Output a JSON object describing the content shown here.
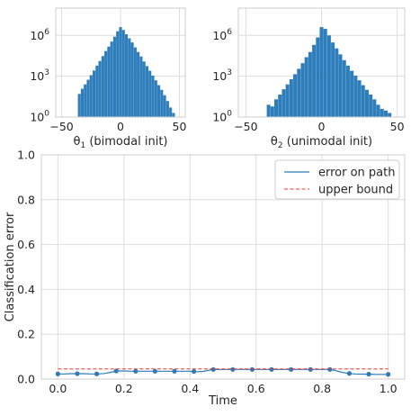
{
  "colors": {
    "bar": "#2f7ebc",
    "line": "#2e7bb8",
    "bound": "#e8352c",
    "grid": "#dddddd",
    "frame": "#cccccc"
  },
  "chart_data": [
    {
      "type": "bar",
      "panel": "top-left",
      "title": "",
      "xlabel": "θ1 (bimodal init)",
      "ylabel": "",
      "log_y": true,
      "grid": true,
      "xlim": [
        -55,
        55
      ],
      "ylim": [
        1,
        100000000
      ],
      "xticks": [
        -50,
        0,
        50
      ],
      "xtick_labels": [
        "−50",
        "0",
        "50"
      ],
      "yticks": [
        1,
        1000,
        1000000
      ],
      "ytick_labels": [
        "10^0",
        "10^3",
        "10^6"
      ],
      "bin_width": 2.4,
      "x": [
        -35,
        -32.5,
        -30,
        -27.5,
        -25,
        -22.5,
        -20,
        -17.5,
        -15,
        -12.5,
        -10,
        -7.5,
        -5,
        -2.5,
        0,
        2.5,
        5,
        7.5,
        10,
        12.5,
        15,
        17.5,
        20,
        22.5,
        25,
        27.5,
        30,
        32.5,
        35,
        37.5,
        40,
        42.5,
        45
      ],
      "values": [
        50,
        120,
        250,
        550,
        1200,
        2600,
        6000,
        13000,
        30000,
        70000,
        150000,
        350000,
        800000,
        2000000,
        4000000,
        2500000,
        1200000,
        600000,
        300000,
        130000,
        60000,
        28000,
        12000,
        5500,
        2500,
        1100,
        500,
        220,
        100,
        40,
        15,
        5,
        2
      ]
    },
    {
      "type": "bar",
      "panel": "top-right",
      "title": "",
      "xlabel": "θ2 (unimodal init)",
      "ylabel": "",
      "log_y": true,
      "grid": true,
      "xlim": [
        -55,
        55
      ],
      "ylim": [
        1,
        100000000
      ],
      "xticks": [
        -50,
        0,
        50
      ],
      "xtick_labels": [
        "−50",
        "0",
        "50"
      ],
      "yticks": [
        1,
        1000,
        1000000
      ],
      "ytick_labels": [
        "10^0",
        "10^3",
        "10^6"
      ],
      "bin_width": 2.4,
      "x": [
        -35,
        -32.5,
        -30,
        -27.5,
        -25,
        -22.5,
        -20,
        -17.5,
        -15,
        -12.5,
        -10,
        -7.5,
        -5,
        -2.5,
        0,
        2.5,
        5,
        7.5,
        10,
        12.5,
        15,
        17.5,
        20,
        22.5,
        25,
        27.5,
        30,
        32.5,
        35,
        37.5,
        40,
        42.5,
        45
      ],
      "values": [
        8,
        6,
        20,
        45,
        110,
        250,
        600,
        1400,
        3500,
        9000,
        25000,
        60000,
        200000,
        700000,
        4000000,
        3000000,
        1000000,
        300000,
        110000,
        40000,
        15000,
        6000,
        2500,
        1100,
        500,
        220,
        100,
        45,
        20,
        8,
        4,
        3,
        2
      ]
    },
    {
      "type": "line",
      "panel": "bottom",
      "title": "",
      "xlabel": "Time",
      "ylabel": "Classification error",
      "grid": true,
      "legend_position": "top-right",
      "xlim": [
        -0.05,
        1.05
      ],
      "ylim": [
        0,
        1.0
      ],
      "xticks": [
        0,
        0.2,
        0.4,
        0.6,
        0.8,
        1.0
      ],
      "xtick_labels": [
        "0.0",
        "0.2",
        "0.4",
        "0.6",
        "0.8",
        "1.0"
      ],
      "yticks": [
        0,
        0.2,
        0.4,
        0.6,
        0.8,
        1.0
      ],
      "ytick_labels": [
        "0.0",
        "0.2",
        "0.4",
        "0.6",
        "0.8",
        "1.0"
      ],
      "series": [
        {
          "name": "error on path",
          "style": "solid",
          "x": [
            0,
            0.02,
            0.04,
            0.06,
            0.08,
            0.1,
            0.12,
            0.14,
            0.16,
            0.18,
            0.2,
            0.22,
            0.24,
            0.26,
            0.28,
            0.3,
            0.32,
            0.34,
            0.36,
            0.38,
            0.4,
            0.42,
            0.44,
            0.46,
            0.48,
            0.5,
            0.52,
            0.54,
            0.56,
            0.58,
            0.6,
            0.62,
            0.64,
            0.66,
            0.68,
            0.7,
            0.72,
            0.74,
            0.76,
            0.78,
            0.8,
            0.82,
            0.84,
            0.86,
            0.88,
            0.9,
            0.92,
            0.94,
            0.96,
            0.98,
            1.0
          ],
          "values": [
            0.023,
            0.023,
            0.024,
            0.024,
            0.024,
            0.023,
            0.023,
            0.025,
            0.03,
            0.036,
            0.036,
            0.035,
            0.035,
            0.035,
            0.035,
            0.035,
            0.035,
            0.035,
            0.035,
            0.035,
            0.035,
            0.033,
            0.034,
            0.04,
            0.043,
            0.043,
            0.043,
            0.043,
            0.043,
            0.043,
            0.043,
            0.043,
            0.043,
            0.043,
            0.043,
            0.043,
            0.043,
            0.043,
            0.043,
            0.043,
            0.043,
            0.043,
            0.038,
            0.03,
            0.025,
            0.023,
            0.022,
            0.022,
            0.021,
            0.021,
            0.021
          ],
          "marker_x": [
            0,
            0.0588,
            0.1176,
            0.1765,
            0.2353,
            0.2941,
            0.3529,
            0.4118,
            0.4706,
            0.5294,
            0.5882,
            0.6471,
            0.7059,
            0.7647,
            0.8235,
            0.8824,
            0.9412,
            1.0
          ],
          "marker_values": [
            0.023,
            0.024,
            0.023,
            0.036,
            0.035,
            0.035,
            0.035,
            0.034,
            0.043,
            0.043,
            0.043,
            0.043,
            0.043,
            0.043,
            0.043,
            0.025,
            0.022,
            0.021
          ]
        },
        {
          "name": "upper bound",
          "style": "dashed",
          "x": [
            0,
            1.0
          ],
          "values": [
            0.045,
            0.045
          ]
        }
      ]
    }
  ]
}
